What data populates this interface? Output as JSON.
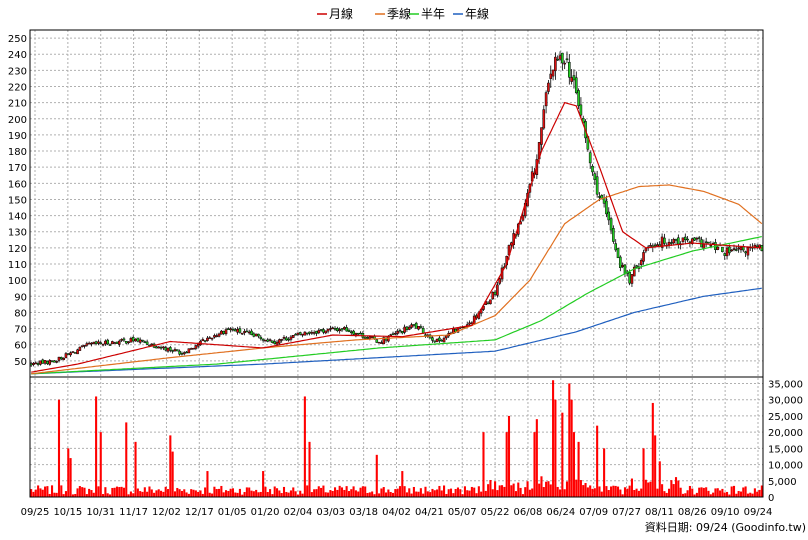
{
  "chart_data": {
    "type": "candlestick",
    "legend": [
      {
        "name": "月線",
        "color": "#cc0000"
      },
      {
        "name": "季線",
        "color": "#e07020"
      },
      {
        "name": "半年",
        "color": "#22cc22"
      },
      {
        "name": "年線",
        "color": "#1f5fbf"
      }
    ],
    "price_axis": {
      "ylim": [
        40,
        255
      ],
      "ticks": [
        50,
        60,
        70,
        80,
        90,
        100,
        110,
        120,
        130,
        140,
        150,
        160,
        170,
        180,
        190,
        200,
        210,
        220,
        230,
        240,
        250
      ]
    },
    "volume_axis": {
      "ylim": [
        0,
        37000
      ],
      "ticks": [
        "0",
        "5,000",
        "10,000",
        "15,000",
        "20,000",
        "25,000",
        "30,000",
        "35,000"
      ],
      "tick_values": [
        0,
        5000,
        10000,
        15000,
        20000,
        25000,
        30000,
        35000
      ]
    },
    "x_labels": [
      "09/25",
      "10/15",
      "10/31",
      "11/17",
      "12/02",
      "12/17",
      "01/05",
      "01/20",
      "02/04",
      "03/03",
      "03/18",
      "04/02",
      "04/21",
      "05/07",
      "05/22",
      "06/08",
      "06/24",
      "07/09",
      "07/27",
      "08/11",
      "08/26",
      "09/10",
      "09/24"
    ],
    "close_keyframes": [
      [
        0,
        48
      ],
      [
        10,
        50
      ],
      [
        25,
        60
      ],
      [
        45,
        63
      ],
      [
        65,
        55
      ],
      [
        75,
        63
      ],
      [
        85,
        70
      ],
      [
        105,
        62
      ],
      [
        120,
        68
      ],
      [
        135,
        70
      ],
      [
        150,
        62
      ],
      [
        165,
        72
      ],
      [
        175,
        62
      ],
      [
        190,
        75
      ],
      [
        200,
        93
      ],
      [
        206,
        120
      ],
      [
        212,
        140
      ],
      [
        218,
        175
      ],
      [
        224,
        230
      ],
      [
        230,
        240
      ],
      [
        236,
        210
      ],
      [
        242,
        165
      ],
      [
        248,
        140
      ],
      [
        254,
        110
      ],
      [
        258,
        100
      ],
      [
        266,
        122
      ],
      [
        276,
        125
      ],
      [
        290,
        123
      ],
      [
        300,
        117
      ],
      [
        315,
        120
      ]
    ],
    "ma_month": [
      [
        0,
        43
      ],
      [
        20,
        48
      ],
      [
        60,
        62
      ],
      [
        100,
        58
      ],
      [
        130,
        66
      ],
      [
        160,
        65
      ],
      [
        190,
        72
      ],
      [
        205,
        110
      ],
      [
        220,
        180
      ],
      [
        230,
        210
      ],
      [
        235,
        208
      ],
      [
        245,
        170
      ],
      [
        255,
        130
      ],
      [
        265,
        120
      ],
      [
        285,
        123
      ],
      [
        315,
        120
      ]
    ],
    "ma_quarter": [
      [
        0,
        42
      ],
      [
        60,
        52
      ],
      [
        100,
        58
      ],
      [
        140,
        63
      ],
      [
        180,
        66
      ],
      [
        200,
        78
      ],
      [
        215,
        100
      ],
      [
        230,
        135
      ],
      [
        245,
        150
      ],
      [
        262,
        158
      ],
      [
        275,
        159
      ],
      [
        290,
        155
      ],
      [
        305,
        147
      ],
      [
        315,
        135
      ]
    ],
    "ma_half": [
      [
        0,
        42
      ],
      [
        80,
        48
      ],
      [
        150,
        58
      ],
      [
        200,
        63
      ],
      [
        220,
        75
      ],
      [
        240,
        92
      ],
      [
        260,
        107
      ],
      [
        285,
        118
      ],
      [
        315,
        127
      ]
    ],
    "ma_year": [
      [
        0,
        42
      ],
      [
        100,
        48
      ],
      [
        200,
        56
      ],
      [
        235,
        68
      ],
      [
        260,
        80
      ],
      [
        290,
        90
      ],
      [
        315,
        95
      ]
    ],
    "volume_spikes": [
      [
        12,
        30000
      ],
      [
        16,
        15000
      ],
      [
        17,
        12000
      ],
      [
        28,
        31000
      ],
      [
        30,
        20000
      ],
      [
        41,
        23000
      ],
      [
        45,
        17000
      ],
      [
        60,
        19000
      ],
      [
        61,
        14000
      ],
      [
        76,
        8000
      ],
      [
        100,
        8000
      ],
      [
        118,
        31000
      ],
      [
        120,
        17000
      ],
      [
        149,
        13000
      ],
      [
        160,
        8000
      ],
      [
        195,
        20000
      ],
      [
        205,
        20000
      ],
      [
        206,
        25000
      ],
      [
        217,
        20000
      ],
      [
        218,
        24000
      ],
      [
        225,
        36000
      ],
      [
        226,
        30000
      ],
      [
        229,
        26000
      ],
      [
        232,
        35000
      ],
      [
        233,
        30000
      ],
      [
        234,
        20000
      ],
      [
        236,
        17000
      ],
      [
        244,
        22000
      ],
      [
        247,
        15000
      ],
      [
        264,
        15000
      ],
      [
        268,
        29000
      ],
      [
        269,
        19000
      ],
      [
        271,
        11000
      ]
    ],
    "volume_base": 1800,
    "footer": "資料日期: 09/24  (Goodinfo.tw)"
  }
}
